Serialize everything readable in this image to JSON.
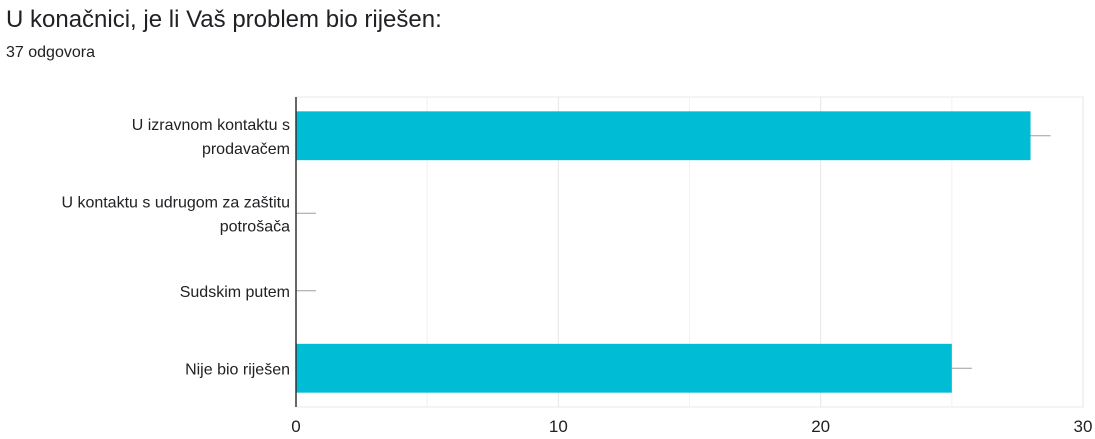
{
  "title": "U konačnici, je li Vaš problem bio riješen:",
  "subtitle": "37 odgovora",
  "chart_data": {
    "type": "bar",
    "orientation": "horizontal",
    "categories": [
      [
        "U izravnom kontaktu s",
        "prodavačem"
      ],
      [
        "U kontaktu s udrugom za zaštitu",
        "potrošača"
      ],
      [
        "Sudskim putem"
      ],
      [
        "Nije bio riješen"
      ]
    ],
    "values": [
      28,
      0,
      0,
      25
    ],
    "xlim": [
      0,
      30
    ],
    "xticks": [
      "0",
      "10",
      "20",
      "30"
    ],
    "bar_color": "#00BCD4",
    "grid": true
  }
}
